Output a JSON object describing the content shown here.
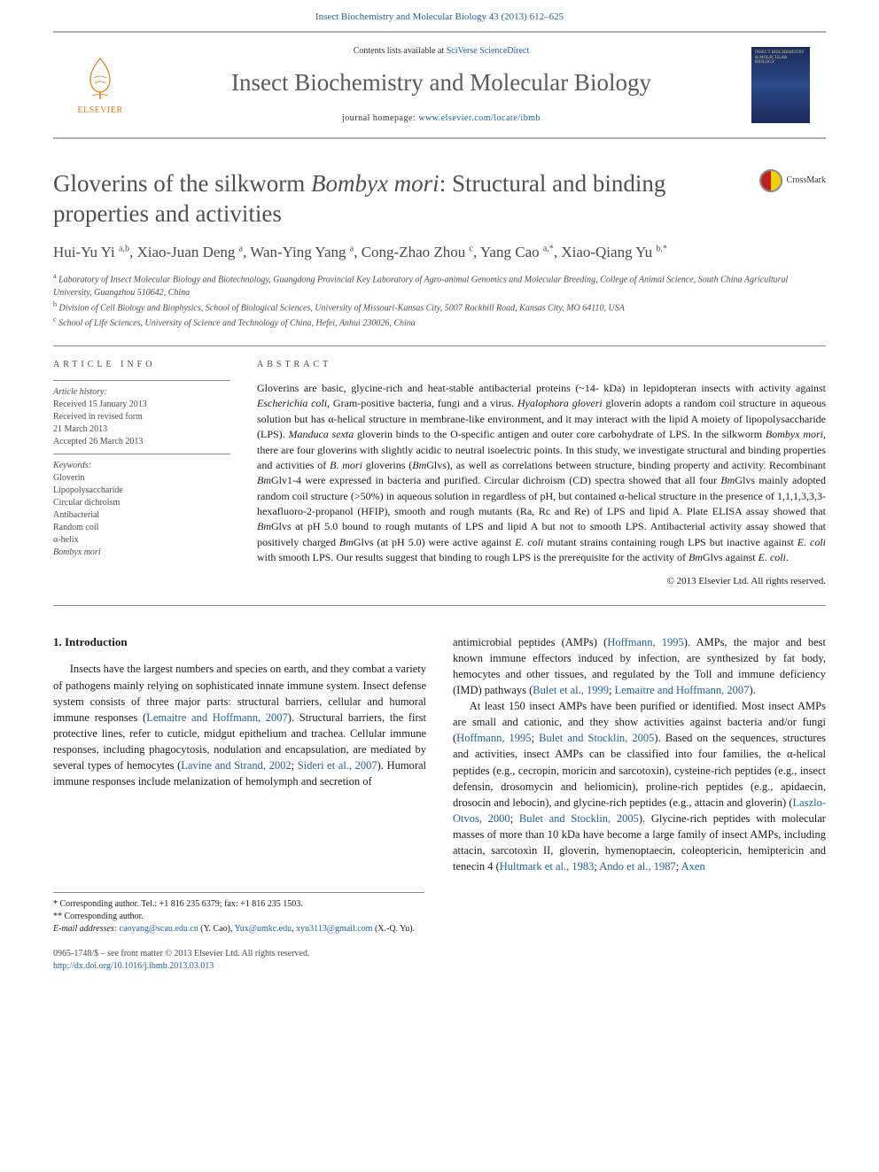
{
  "header": {
    "citation": "Insect Biochemistry and Molecular Biology 43 (2013) 612–625",
    "contents_prefix": "Contents lists available at ",
    "contents_link": "SciVerse ScienceDirect",
    "journal_name": "Insect Biochemistry and Molecular Biology",
    "homepage_prefix": "journal homepage: ",
    "homepage_link": "www.elsevier.com/locate/ibmb",
    "elsevier_label": "ELSEVIER",
    "cover_text": "INSECT BIOCHEMISTRY & MOLECULAR BIOLOGY"
  },
  "article": {
    "title_html": "Gloverins of the silkworm <em>Bombyx mori</em>: Structural and binding properties and activities",
    "crossmark_label": "CrossMark",
    "authors_html": "Hui-Yu Yi <sup>a,b</sup>, Xiao-Juan Deng <sup>a</sup>, Wan-Ying Yang <sup>a</sup>, Cong-Zhao Zhou <sup>c</sup>, Yang Cao <sup>a,*</sup>, Xiao-Qiang Yu <sup>b,*</sup>",
    "affiliations": [
      {
        "sup": "a",
        "text": "Laboratory of Insect Molecular Biology and Biotechnology, Guangdong Provincial Key Laboratory of Agro-animal Genomics and Molecular Breeding, College of Animal Science, South China Agricultural University, Guangzhou 510642, China"
      },
      {
        "sup": "b",
        "text": "Division of Cell Biology and Biophysics, School of Biological Sciences, University of Missouri-Kansas City, 5007 Rockhill Road, Kansas City, MO 64110, USA"
      },
      {
        "sup": "c",
        "text": "School of Life Sciences, University of Science and Technology of China, Hefei, Anhui 230026, China"
      }
    ]
  },
  "meta": {
    "info_label": "ARTICLE INFO",
    "history_label": "Article history:",
    "history": [
      "Received 15 January 2013",
      "Received in revised form",
      "21 March 2013",
      "Accepted 26 March 2013"
    ],
    "keywords_label": "Keywords:",
    "keywords": [
      "Gloverin",
      "Lipopolysaccharide",
      "Circular dichroism",
      "Antibacterial",
      "Random coil",
      "α-helix",
      "Bombyx mori"
    ]
  },
  "abstract": {
    "label": "ABSTRACT",
    "text_html": "Gloverins are basic, glycine-rich and heat-stable antibacterial proteins (~14- kDa) in lepidopteran insects with activity against <em>Escherichia coli</em>, Gram-positive bacteria, fungi and a virus. <em>Hyalophora gloveri</em> gloverin adopts a random coil structure in aqueous solution but has α-helical structure in membrane-like environment, and it may interact with the lipid A moiety of lipopolysaccharide (LPS). <em>Manduca sexta</em> gloverin binds to the O-specific antigen and outer core carbohydrate of LPS. In the silkworm <em>Bombyx mori</em>, there are four gloverins with slightly acidic to neutral isoelectric points. In this study, we investigate structural and binding properties and activities of <em>B. mori</em> gloverins (<em>Bm</em>Glvs), as well as correlations between structure, binding property and activity. Recombinant <em>Bm</em>Glv1-4 were expressed in bacteria and purified. Circular dichroism (CD) spectra showed that all four <em>Bm</em>Glvs mainly adopted random coil structure (>50%) in aqueous solution in regardless of pH, but contained α-helical structure in the presence of 1,1,1,3,3,3-hexafluoro-2-propanol (HFIP), smooth and rough mutants (Ra, Rc and Re) of LPS and lipid A. Plate ELISA assay showed that <em>Bm</em>Glvs at pH 5.0 bound to rough mutants of LPS and lipid A but not to smooth LPS. Antibacterial activity assay showed that positively charged <em>Bm</em>Glvs (at pH 5.0) were active against <em>E. coli</em> mutant strains containing rough LPS but inactive against <em>E. coli</em> with smooth LPS. Our results suggest that binding to rough LPS is the prerequisite for the activity of <em>Bm</em>Glvs against <em>E. coli</em>.",
    "copyright": "© 2013 Elsevier Ltd. All rights reserved."
  },
  "body": {
    "section_heading": "1. Introduction",
    "col1_html": "Insects have the largest numbers and species on earth, and they combat a variety of pathogens mainly relying on sophisticated innate immune system. Insect defense system consists of three major parts: structural barriers, cellular and humoral immune responses (<a href='#'>Lemaitre and Hoffmann, 2007</a>). Structural barriers, the first protective lines, refer to cuticle, midgut epithelium and trachea. Cellular immune responses, including phagocytosis, nodulation and encapsulation, are mediated by several types of hemocytes (<a href='#'>Lavine and Strand, 2002</a>; <a href='#'>Sideri et al., 2007</a>). Humoral immune responses include melanization of hemolymph and secretion of",
    "col2_html": "antimicrobial peptides (AMPs) (<a href='#'>Hoffmann, 1995</a>). AMPs, the major and best known immune effectors induced by infection, are synthesized by fat body, hemocytes and other tissues, and regulated by the Toll and immune deficiency (IMD) pathways (<a href='#'>Bulet et al., 1999</a>; <a href='#'>Lemaitre and Hoffmann, 2007</a>).",
    "col2b_html": "At least 150 insect AMPs have been purified or identified. Most insect AMPs are small and cationic, and they show activities against bacteria and/or fungi (<a href='#'>Hoffmann, 1995</a>; <a href='#'>Bulet and Stocklin, 2005</a>). Based on the sequences, structures and activities, insect AMPs can be classified into four families, the α-helical peptides (e.g., cecropin, moricin and sarcotoxin), cysteine-rich peptides (e.g., insect defensin, drosomycin and heliomicin), proline-rich peptides (e.g., apidaecin, drosocin and lebocin), and glycine-rich peptides (e.g., attacin and gloverin) (<a href='#'>Laszlo-Otvos, 2000</a>; <a href='#'>Bulet and Stocklin, 2005</a>). Glycine-rich peptides with molecular masses of more than 10 kDa have become a large family of insect AMPs, including attacin, sarcotoxin II, gloverin, hymenoptaecin, coleoptericin, hemiptericin and tenecin 4 (<a href='#'>Hultmark et al., 1983</a>; <a href='#'>Ando et al., 1987</a>; <a href='#'>Axen</a>"
  },
  "footnotes": {
    "corr1": "* Corresponding author. Tel.: +1 816 235 6379; fax: +1 816 235 1503.",
    "corr2": "** Corresponding author.",
    "email_label": "E-mail addresses:",
    "email_html": "<a href='#'>caoyang@scau.edu.cn</a> (Y. Cao), <a href='#'>Yux@umkc.edu</a>, <a href='#'>xyu3113@gmail.com</a> (X.-Q. Yu)."
  },
  "footer": {
    "line1": "0965-1748/$ – see front matter © 2013 Elsevier Ltd. All rights reserved.",
    "doi": "http://dx.doi.org/10.1016/j.ibmb.2013.03.013"
  },
  "colors": {
    "link": "#2060a0",
    "text": "#1a1a1a",
    "gray": "#4a4a4a",
    "elsevier_orange": "#e67817"
  }
}
